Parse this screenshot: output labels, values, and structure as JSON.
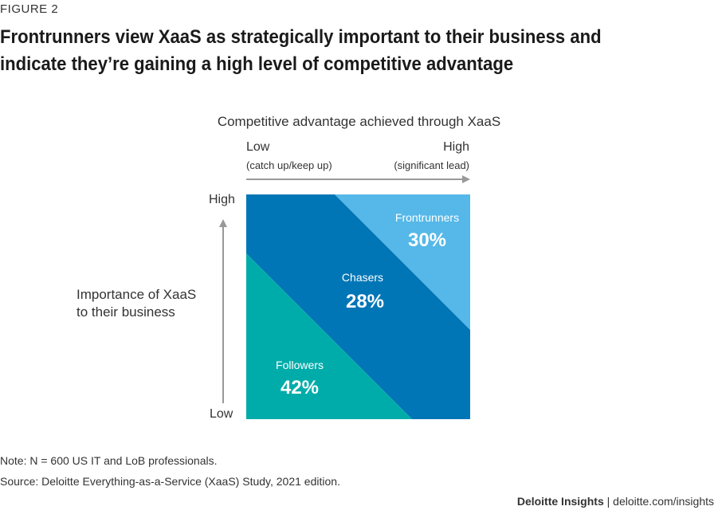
{
  "figure_label": "FIGURE 2",
  "title_line1": "Frontrunners view XaaS as strategically important to their business and",
  "title_line2": "indicate they’re gaining a high level of competitive advantage",
  "note": "Note: N = 600 US IT and LoB professionals.",
  "source": "Source: Deloitte Everything-as-a-Service (XaaS) Study, 2021 edition.",
  "credit_brand": "Deloitte Insights",
  "credit_sep": " | ",
  "credit_url": "deloitte.com/insights",
  "chart_data": {
    "type": "matrix",
    "x_axis": {
      "title": "Competitive advantage achieved through XaaS",
      "low_label": "Low",
      "low_sublabel": "(catch up/keep up)",
      "high_label": "High",
      "high_sublabel": "(significant lead)"
    },
    "y_axis": {
      "title_line1": "Importance of XaaS",
      "title_line2": "to their business",
      "low_label": "Low",
      "high_label": "High"
    },
    "segments": [
      {
        "name": "Followers",
        "value": 42,
        "label": "42%",
        "color": "#00aca9"
      },
      {
        "name": "Chasers",
        "value": 28,
        "label": "28%",
        "color": "#0076b6"
      },
      {
        "name": "Frontrunners",
        "value": 30,
        "label": "30%",
        "color": "#55b8e8"
      }
    ],
    "axis_color": "#999999"
  }
}
